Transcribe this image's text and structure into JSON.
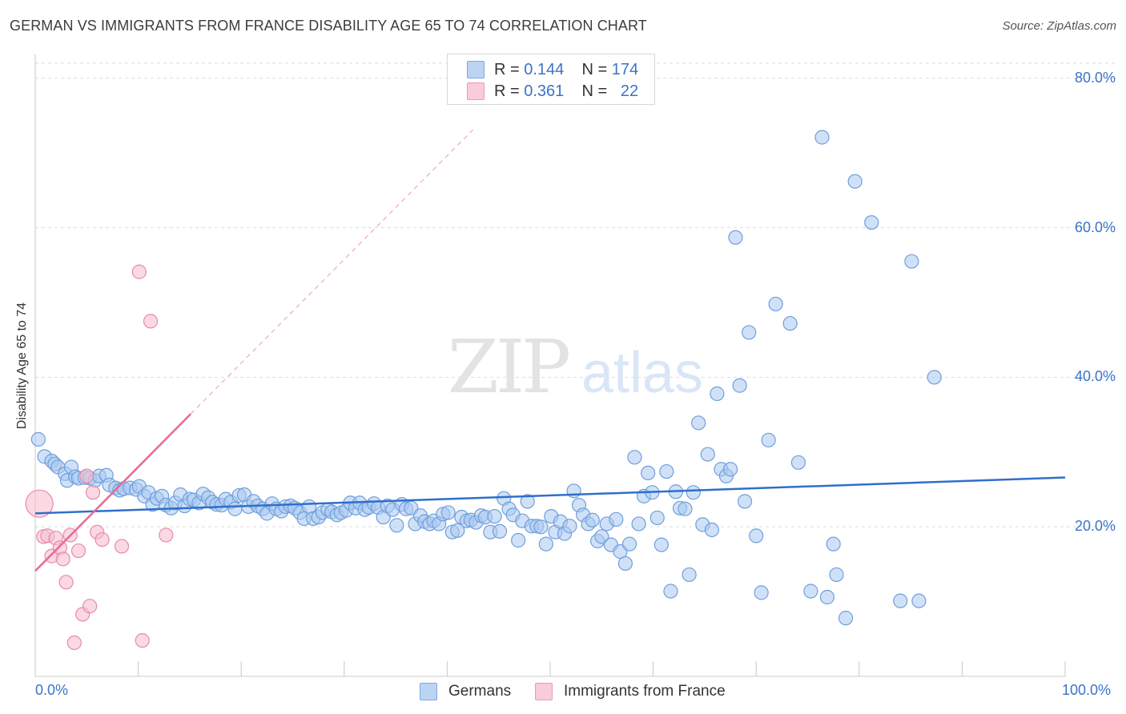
{
  "title": "GERMAN VS IMMIGRANTS FROM FRANCE DISABILITY AGE 65 TO 74 CORRELATION CHART",
  "source": "Source: ZipAtlas.com",
  "watermark": {
    "zip": "ZIP",
    "atlas": "atlas"
  },
  "legend": {
    "rows": [
      {
        "r_label": "R =",
        "r_value": "0.144",
        "n_label": "N =",
        "n_value": "174",
        "color": "#a9c8f0"
      },
      {
        "r_label": "R =",
        "r_value": "0.361",
        "n_label": "N =",
        "n_value": "22",
        "color": "#f6b6c8"
      }
    ]
  },
  "bottom_legend": [
    "Germans",
    "Immigrants from France"
  ],
  "colors": {
    "blue_fill": "#a9c8f0",
    "blue_stroke": "#6f9fdc",
    "blue_line": "#2f6fca",
    "pink_fill": "#f6c0d0",
    "pink_stroke": "#e98aa8",
    "pink_line": "#e76a93",
    "grid": "#dddddd",
    "axis_text": "#3a73c9"
  },
  "chart_data": {
    "type": "scatter",
    "title": "GERMAN VS IMMIGRANTS FROM FRANCE DISABILITY AGE 65 TO 74 CORRELATION CHART",
    "xlabel": "",
    "ylabel": "Disability Age 65 to 74",
    "xlim": [
      0,
      100
    ],
    "ylim": [
      0,
      82
    ],
    "x_tick_labels": [
      "0.0%",
      "100.0%"
    ],
    "y_ticks": [
      20,
      40,
      60,
      80
    ],
    "y_tick_labels": [
      "20.0%",
      "40.0%",
      "60.0%",
      "80.0%"
    ],
    "grid": true,
    "legend_position": "top-center",
    "series": [
      {
        "name": "Germans",
        "r": 0.144,
        "n": 174,
        "trend": {
          "x": [
            0,
            100
          ],
          "y": [
            21.8,
            26.6
          ]
        },
        "points": [
          [
            0.3,
            31.7
          ],
          [
            0.9,
            29.4
          ],
          [
            1.6,
            28.8
          ],
          [
            1.9,
            28.4
          ],
          [
            2.2,
            28.0
          ],
          [
            2.9,
            27.1
          ],
          [
            3.5,
            28.0
          ],
          [
            3.1,
            26.2
          ],
          [
            3.9,
            26.7
          ],
          [
            4.2,
            26.5
          ],
          [
            4.8,
            26.6
          ],
          [
            5.3,
            26.5
          ],
          [
            5.8,
            26.2
          ],
          [
            6.2,
            26.8
          ],
          [
            6.9,
            26.9
          ],
          [
            7.2,
            25.6
          ],
          [
            7.8,
            25.2
          ],
          [
            8.2,
            24.9
          ],
          [
            8.6,
            25.1
          ],
          [
            9.2,
            25.2
          ],
          [
            9.8,
            25.0
          ],
          [
            10.1,
            25.4
          ],
          [
            10.6,
            24.1
          ],
          [
            11.0,
            24.6
          ],
          [
            11.4,
            23.0
          ],
          [
            11.8,
            23.8
          ],
          [
            12.3,
            24.1
          ],
          [
            12.7,
            22.9
          ],
          [
            13.2,
            22.5
          ],
          [
            13.6,
            23.2
          ],
          [
            14.1,
            24.3
          ],
          [
            14.5,
            22.8
          ],
          [
            15.0,
            23.7
          ],
          [
            15.4,
            23.6
          ],
          [
            15.9,
            23.2
          ],
          [
            16.3,
            24.4
          ],
          [
            16.8,
            23.9
          ],
          [
            17.2,
            23.3
          ],
          [
            17.6,
            23.0
          ],
          [
            18.1,
            22.9
          ],
          [
            18.5,
            23.7
          ],
          [
            19.0,
            23.3
          ],
          [
            19.4,
            22.4
          ],
          [
            19.8,
            24.2
          ],
          [
            20.3,
            24.3
          ],
          [
            20.7,
            22.7
          ],
          [
            21.2,
            23.4
          ],
          [
            21.6,
            22.8
          ],
          [
            22.1,
            22.4
          ],
          [
            22.5,
            21.8
          ],
          [
            23.0,
            23.1
          ],
          [
            23.4,
            22.4
          ],
          [
            23.9,
            22.1
          ],
          [
            24.3,
            22.7
          ],
          [
            24.8,
            22.8
          ],
          [
            25.2,
            22.5
          ],
          [
            25.7,
            21.9
          ],
          [
            26.1,
            21.1
          ],
          [
            26.6,
            22.7
          ],
          [
            27.0,
            21.1
          ],
          [
            27.5,
            21.3
          ],
          [
            27.9,
            21.9
          ],
          [
            28.4,
            22.3
          ],
          [
            28.8,
            22.0
          ],
          [
            29.3,
            21.6
          ],
          [
            29.7,
            21.9
          ],
          [
            30.2,
            22.2
          ],
          [
            30.6,
            23.2
          ],
          [
            31.1,
            22.5
          ],
          [
            31.5,
            23.2
          ],
          [
            32.0,
            22.3
          ],
          [
            32.4,
            22.6
          ],
          [
            32.9,
            23.1
          ],
          [
            33.3,
            22.6
          ],
          [
            33.8,
            21.3
          ],
          [
            34.2,
            22.8
          ],
          [
            34.7,
            22.3
          ],
          [
            35.1,
            20.2
          ],
          [
            35.6,
            23.0
          ],
          [
            36.0,
            22.4
          ],
          [
            36.5,
            22.5
          ],
          [
            36.9,
            20.4
          ],
          [
            37.4,
            21.5
          ],
          [
            37.8,
            20.7
          ],
          [
            38.3,
            20.4
          ],
          [
            38.7,
            20.8
          ],
          [
            39.2,
            20.4
          ],
          [
            39.6,
            21.7
          ],
          [
            40.1,
            21.9
          ],
          [
            40.5,
            19.3
          ],
          [
            41.0,
            19.5
          ],
          [
            41.4,
            21.3
          ],
          [
            41.9,
            20.8
          ],
          [
            42.3,
            20.9
          ],
          [
            42.8,
            20.6
          ],
          [
            43.3,
            21.5
          ],
          [
            43.7,
            21.3
          ],
          [
            44.2,
            19.3
          ],
          [
            44.6,
            21.4
          ],
          [
            45.1,
            19.4
          ],
          [
            45.5,
            23.8
          ],
          [
            46.0,
            22.4
          ],
          [
            46.4,
            21.6
          ],
          [
            46.9,
            18.2
          ],
          [
            47.3,
            20.8
          ],
          [
            47.8,
            23.4
          ],
          [
            48.2,
            20.1
          ],
          [
            48.7,
            20.1
          ],
          [
            49.1,
            20.0
          ],
          [
            49.6,
            17.7
          ],
          [
            50.1,
            21.4
          ],
          [
            50.5,
            19.3
          ],
          [
            51.0,
            20.7
          ],
          [
            51.4,
            19.1
          ],
          [
            51.9,
            20.1
          ],
          [
            52.3,
            24.8
          ],
          [
            52.8,
            22.9
          ],
          [
            53.2,
            21.6
          ],
          [
            53.7,
            20.4
          ],
          [
            54.1,
            20.9
          ],
          [
            54.6,
            18.1
          ],
          [
            55.0,
            18.7
          ],
          [
            55.5,
            20.4
          ],
          [
            55.9,
            17.6
          ],
          [
            56.4,
            21.0
          ],
          [
            56.8,
            16.7
          ],
          [
            57.3,
            15.1
          ],
          [
            57.7,
            17.7
          ],
          [
            58.2,
            29.3
          ],
          [
            58.6,
            20.4
          ],
          [
            59.1,
            24.1
          ],
          [
            59.5,
            27.2
          ],
          [
            59.9,
            24.6
          ],
          [
            60.4,
            21.2
          ],
          [
            60.8,
            17.6
          ],
          [
            61.3,
            27.4
          ],
          [
            61.7,
            11.4
          ],
          [
            62.2,
            24.7
          ],
          [
            62.6,
            22.5
          ],
          [
            63.1,
            22.4
          ],
          [
            63.5,
            13.6
          ],
          [
            63.9,
            24.6
          ],
          [
            64.4,
            33.9
          ],
          [
            64.8,
            20.3
          ],
          [
            65.3,
            29.7
          ],
          [
            65.7,
            19.6
          ],
          [
            66.2,
            37.8
          ],
          [
            66.6,
            27.7
          ],
          [
            67.1,
            26.8
          ],
          [
            67.5,
            27.7
          ],
          [
            68.0,
            58.7
          ],
          [
            68.4,
            38.9
          ],
          [
            68.9,
            23.4
          ],
          [
            69.3,
            46.0
          ],
          [
            70.0,
            18.8
          ],
          [
            70.5,
            11.2
          ],
          [
            71.2,
            31.6
          ],
          [
            71.9,
            49.8
          ],
          [
            73.3,
            47.2
          ],
          [
            74.1,
            28.6
          ],
          [
            75.3,
            11.4
          ],
          [
            76.4,
            72.1
          ],
          [
            76.9,
            10.6
          ],
          [
            77.5,
            17.7
          ],
          [
            77.8,
            13.6
          ],
          [
            78.7,
            7.8
          ],
          [
            79.6,
            66.2
          ],
          [
            81.2,
            60.7
          ],
          [
            84.0,
            10.1
          ],
          [
            85.1,
            55.5
          ],
          [
            85.8,
            10.1
          ],
          [
            87.3,
            40.0
          ]
        ]
      },
      {
        "name": "Immigrants from France",
        "r": 0.361,
        "n": 22,
        "trend": {
          "x": [
            0,
            15.1
          ],
          "y": [
            14.1,
            35.1
          ]
        },
        "trend_extension": {
          "x": [
            15.1,
            42.5
          ],
          "y": [
            35.1,
            73.1
          ]
        },
        "points": [
          [
            0.4,
            23.1
          ],
          [
            0.8,
            18.7
          ],
          [
            1.2,
            18.8
          ],
          [
            1.6,
            16.1
          ],
          [
            2.0,
            18.5
          ],
          [
            2.4,
            17.2
          ],
          [
            2.7,
            15.7
          ],
          [
            3.0,
            12.6
          ],
          [
            3.4,
            18.9
          ],
          [
            3.8,
            4.5
          ],
          [
            4.2,
            16.8
          ],
          [
            4.6,
            8.3
          ],
          [
            5.0,
            26.8
          ],
          [
            5.3,
            9.4
          ],
          [
            5.6,
            24.6
          ],
          [
            6.0,
            19.3
          ],
          [
            6.5,
            18.3
          ],
          [
            8.4,
            17.4
          ],
          [
            10.1,
            54.1
          ],
          [
            10.4,
            4.8
          ],
          [
            11.2,
            47.5
          ],
          [
            12.7,
            18.9
          ]
        ]
      }
    ]
  }
}
